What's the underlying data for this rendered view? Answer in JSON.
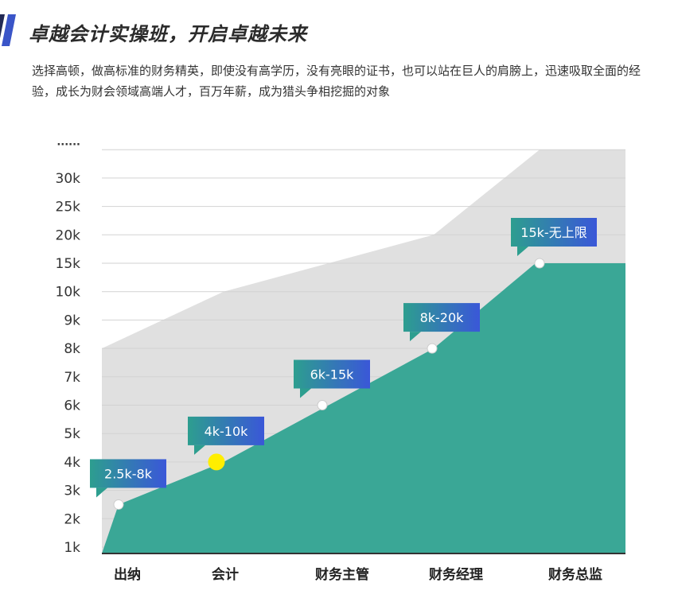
{
  "header": {
    "title": "卓越会计实操班，开启卓越未来",
    "description": "选择高顿，做高标准的财务精英，即使没有高学历，没有亮眼的证书，也可以站在巨人的肩膀上，迅速吸取全面的经验，成长为财会领域高端人才，百万年薪，成为猎头争相挖掘的对象",
    "accent_color": "#3a55c8"
  },
  "chart_data": {
    "type": "area",
    "title": "",
    "xlabel": "",
    "ylabel": "",
    "y_ticks": [
      "1k",
      "2k",
      "3k",
      "4k",
      "5k",
      "6k",
      "7k",
      "8k",
      "9k",
      "10k",
      "15k",
      "20k",
      "25k",
      "30k",
      "······"
    ],
    "categories": [
      "出纳",
      "会计",
      "财务主管",
      "财务经理",
      "财务总监"
    ],
    "series": [
      {
        "name": "",
        "color": "#3aa796",
        "points": [
          {
            "y": 2.5,
            "label": "2.5k-8k",
            "highlight": false
          },
          {
            "y": 4,
            "label": "4k-10k",
            "highlight": true
          },
          {
            "y": 6,
            "label": "6k-15k",
            "highlight": false
          },
          {
            "y": 8,
            "label": "8k-20k",
            "highlight": false
          },
          {
            "y": 15,
            "label": "15k-无上限",
            "highlight": false
          }
        ]
      }
    ],
    "upper_band": {
      "color": "#e0e0e0",
      "values": [
        8,
        10,
        15,
        20,
        35
      ]
    },
    "label_colors": {
      "start": "#2d9e8f",
      "end": "#3a57d8"
    },
    "highlight_color": "#ffee00",
    "grid": true,
    "legend": "none"
  }
}
